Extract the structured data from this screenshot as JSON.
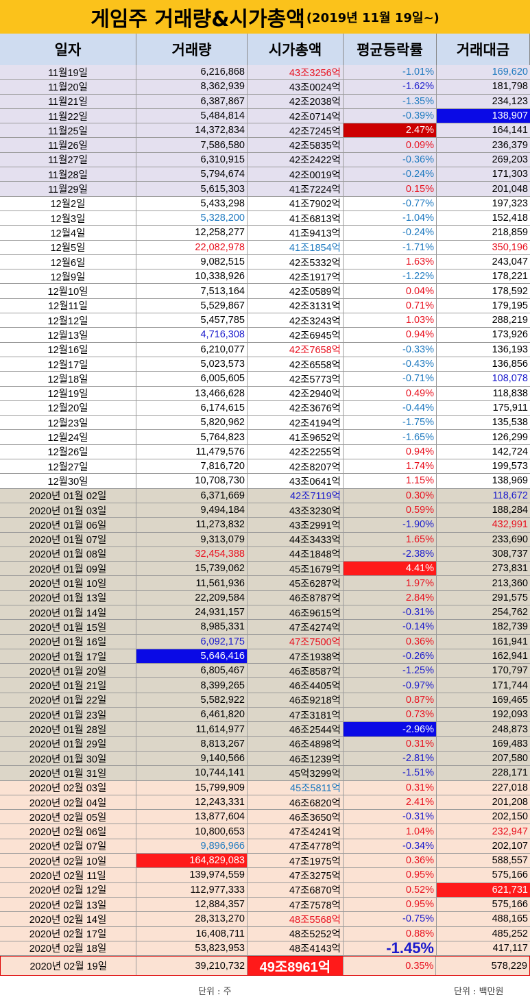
{
  "title": {
    "main": "게임주 거래량&시가총액",
    "sub": "(2019년 11월 19일~)"
  },
  "columns": [
    "일자",
    "거래량",
    "시가총액",
    "평균등락률",
    "거래대금"
  ],
  "colors": {
    "red": "#e8101e",
    "blue": "#1a1acc",
    "cyan": "#1f7ac0",
    "hl_red": "#cc0000",
    "hl_red2": "#ff1a1a",
    "hl_blue": "#0a0ae6"
  },
  "rows": [
    {
      "g": "g1",
      "d": "11월19일",
      "v": "6,216,868",
      "m": "43조3256억",
      "r": "-1.01%",
      "a": "169,620",
      "cm": "red",
      "cr": "cyan",
      "ca": "cyan"
    },
    {
      "g": "g1",
      "d": "11월20일",
      "v": "8,362,939",
      "m": "43조0024억",
      "r": "-1.62%",
      "a": "181,798",
      "cr": "blue"
    },
    {
      "g": "g1",
      "d": "11월21일",
      "v": "6,387,867",
      "m": "42조2038억",
      "r": "-1.35%",
      "a": "234,123",
      "cr": "cyan"
    },
    {
      "g": "g1",
      "d": "11월22일",
      "v": "5,484,814",
      "m": "42조0714억",
      "r": "-0.39%",
      "a": "138,907",
      "cr": "cyan",
      "ha": "hl_blue"
    },
    {
      "g": "g1",
      "d": "11월25일",
      "v": "14,372,834",
      "m": "42조7245억",
      "r": "2.47%",
      "a": "164,141",
      "hr": "hl_red"
    },
    {
      "g": "g1",
      "d": "11월26일",
      "v": "7,586,580",
      "m": "42조5835억",
      "r": "0.09%",
      "a": "236,379",
      "cr": "red"
    },
    {
      "g": "g1",
      "d": "11월27일",
      "v": "6,310,915",
      "m": "42조2422억",
      "r": "-0.36%",
      "a": "269,203",
      "cr": "cyan"
    },
    {
      "g": "g1",
      "d": "11월28일",
      "v": "5,794,674",
      "m": "42조0019억",
      "r": "-0.24%",
      "a": "171,303",
      "cr": "cyan"
    },
    {
      "g": "g1",
      "d": "11월29일",
      "v": "5,615,303",
      "m": "41조7224억",
      "r": "0.15%",
      "a": "201,048",
      "cr": "red"
    },
    {
      "g": "g2",
      "d": "12월2일",
      "v": "5,433,298",
      "m": "41조7902억",
      "r": "-0.77%",
      "a": "197,323",
      "cr": "cyan"
    },
    {
      "g": "g2",
      "d": "12월3일",
      "v": "5,328,200",
      "m": "41조6813억",
      "r": "-1.04%",
      "a": "152,418",
      "cv": "cyan",
      "cr": "cyan"
    },
    {
      "g": "g2",
      "d": "12월4일",
      "v": "12,258,277",
      "m": "41조9413억",
      "r": "-0.24%",
      "a": "218,859",
      "cr": "cyan"
    },
    {
      "g": "g2",
      "d": "12월5일",
      "v": "22,082,978",
      "m": "41조1854억",
      "r": "-1.71%",
      "a": "350,196",
      "cv": "red",
      "cm": "cyan",
      "cr": "cyan",
      "ca": "red"
    },
    {
      "g": "g2",
      "d": "12월6일",
      "v": "9,082,515",
      "m": "42조5332억",
      "r": "1.63%",
      "a": "243,047",
      "cr": "red"
    },
    {
      "g": "g2",
      "d": "12월9일",
      "v": "10,338,926",
      "m": "42조1917억",
      "r": "-1.22%",
      "a": "178,221",
      "cr": "cyan"
    },
    {
      "g": "g2",
      "d": "12월10일",
      "v": "7,513,164",
      "m": "42조0589억",
      "r": "0.04%",
      "a": "178,592",
      "cr": "red"
    },
    {
      "g": "g2",
      "d": "12월11일",
      "v": "5,529,867",
      "m": "42조3131억",
      "r": "0.71%",
      "a": "179,195",
      "cr": "red"
    },
    {
      "g": "g2",
      "d": "12월12일",
      "v": "5,457,785",
      "m": "42조3243억",
      "r": "1.03%",
      "a": "288,219",
      "cr": "red"
    },
    {
      "g": "g2",
      "d": "12월13일",
      "v": "4,716,308",
      "m": "42조6945억",
      "r": "0.94%",
      "a": "173,926",
      "cv": "blue",
      "cr": "red"
    },
    {
      "g": "g2",
      "d": "12월16일",
      "v": "6,210,077",
      "m": "42조7658억",
      "r": "-0.33%",
      "a": "136,193",
      "cm": "red",
      "cr": "cyan"
    },
    {
      "g": "g2",
      "d": "12월17일",
      "v": "5,023,573",
      "m": "42조6558억",
      "r": "-0.43%",
      "a": "136,856",
      "cr": "cyan"
    },
    {
      "g": "g2",
      "d": "12월18일",
      "v": "6,005,605",
      "m": "42조5773억",
      "r": "-0.71%",
      "a": "108,078",
      "cr": "cyan",
      "ca": "blue"
    },
    {
      "g": "g2",
      "d": "12월19일",
      "v": "13,466,628",
      "m": "42조2940억",
      "r": "0.49%",
      "a": "118,838",
      "cr": "red"
    },
    {
      "g": "g2",
      "d": "12월20일",
      "v": "6,174,615",
      "m": "42조3676억",
      "r": "-0.44%",
      "a": "175,911",
      "cr": "cyan"
    },
    {
      "g": "g2",
      "d": "12월23일",
      "v": "5,820,962",
      "m": "42조4194억",
      "r": "-1.75%",
      "a": "135,538",
      "cr": "cyan"
    },
    {
      "g": "g2",
      "d": "12월24일",
      "v": "5,764,823",
      "m": "41조9652억",
      "r": "-1.65%",
      "a": "126,299",
      "cr": "cyan"
    },
    {
      "g": "g2",
      "d": "12월26일",
      "v": "11,479,576",
      "m": "42조2255억",
      "r": "0.94%",
      "a": "142,724",
      "cr": "red"
    },
    {
      "g": "g2",
      "d": "12월27일",
      "v": "7,816,720",
      "m": "42조8207억",
      "r": "1.74%",
      "a": "199,573",
      "cr": "red"
    },
    {
      "g": "g2",
      "d": "12월30일",
      "v": "10,708,730",
      "m": "43조0641억",
      "r": "1.15%",
      "a": "138,969",
      "cr": "red"
    },
    {
      "g": "g3",
      "d": "2020년 01월 02일",
      "v": "6,371,669",
      "m": "42조7119억",
      "r": "0.30%",
      "a": "118,672",
      "cm": "blue",
      "cr": "red",
      "ca": "blue"
    },
    {
      "g": "g3",
      "d": "2020년 01월 03일",
      "v": "9,494,184",
      "m": "43조3230억",
      "r": "0.59%",
      "a": "188,284",
      "cr": "red"
    },
    {
      "g": "g3",
      "d": "2020년 01월 06일",
      "v": "11,273,832",
      "m": "43조2991억",
      "r": "-1.90%",
      "a": "432,991",
      "cr": "blue",
      "ca": "red"
    },
    {
      "g": "g3",
      "d": "2020년 01월 07일",
      "v": "9,313,079",
      "m": "44조3433억",
      "r": "1.65%",
      "a": "233,690",
      "cr": "red"
    },
    {
      "g": "g3",
      "d": "2020년 01월 08일",
      "v": "32,454,388",
      "m": "44조1848억",
      "r": "-2.38%",
      "a": "308,737",
      "cv": "red",
      "cr": "blue"
    },
    {
      "g": "g3",
      "d": "2020년 01월 09일",
      "v": "15,739,062",
      "m": "45조1679억",
      "r": "4.41%",
      "a": "273,831",
      "hr": "hl_red2"
    },
    {
      "g": "g3",
      "d": "2020년 01월 10일",
      "v": "11,561,936",
      "m": "45조6287억",
      "r": "1.97%",
      "a": "213,360",
      "cr": "red"
    },
    {
      "g": "g3",
      "d": "2020년 01월 13일",
      "v": "22,209,584",
      "m": "46조8787억",
      "r": "2.84%",
      "a": "291,575",
      "cr": "red"
    },
    {
      "g": "g3",
      "d": "2020년 01월 14일",
      "v": "24,931,157",
      "m": "46조9615억",
      "r": "-0.31%",
      "a": "254,762",
      "cr": "blue"
    },
    {
      "g": "g3",
      "d": "2020년 01월 15일",
      "v": "8,985,331",
      "m": "47조4274억",
      "r": "-0.14%",
      "a": "182,739",
      "cr": "blue"
    },
    {
      "g": "g3",
      "d": "2020년 01월 16일",
      "v": "6,092,175",
      "m": "47조7500억",
      "r": "0.36%",
      "a": "161,941",
      "cv": "blue",
      "cm": "red",
      "cr": "red"
    },
    {
      "g": "g3",
      "d": "2020년 01월 17일",
      "v": "5,646,416",
      "m": "47조1938억",
      "r": "-0.26%",
      "a": "162,941",
      "hv": "hl_blue",
      "cr": "blue"
    },
    {
      "g": "g3",
      "d": "2020년 01월 20일",
      "v": "6,805,467",
      "m": "46조8587억",
      "r": "-1.25%",
      "a": "170,797",
      "cr": "blue"
    },
    {
      "g": "g3",
      "d": "2020년 01월 21일",
      "v": "8,399,265",
      "m": "46조4405억",
      "r": "-0.97%",
      "a": "171,744",
      "cr": "blue"
    },
    {
      "g": "g3",
      "d": "2020년 01월 22일",
      "v": "5,582,922",
      "m": "46조9218억",
      "r": "0.87%",
      "a": "169,465",
      "cr": "red"
    },
    {
      "g": "g3",
      "d": "2020년 01월 23일",
      "v": "6,461,820",
      "m": "47조3181억",
      "r": "0.73%",
      "a": "192,093",
      "cr": "red"
    },
    {
      "g": "g3",
      "d": "2020년 01월 28일",
      "v": "11,614,977",
      "m": "46조2544억",
      "r": "-2.96%",
      "a": "248,873",
      "hr": "hl_blue"
    },
    {
      "g": "g3",
      "d": "2020년 01월 29일",
      "v": "8,813,267",
      "m": "46조4898억",
      "r": "0.31%",
      "a": "169,483",
      "cr": "red"
    },
    {
      "g": "g3",
      "d": "2020년 01월 30일",
      "v": "9,140,566",
      "m": "46조1239억",
      "r": "-2.81%",
      "a": "207,580",
      "cr": "blue"
    },
    {
      "g": "g3",
      "d": "2020년 01월 31일",
      "v": "10,744,141",
      "m": "45억3299억",
      "r": "-1.51%",
      "a": "228,171",
      "cr": "blue"
    },
    {
      "g": "g4",
      "d": "2020년 02월 03일",
      "v": "15,799,909",
      "m": "45조5811억",
      "r": "0.31%",
      "a": "227,018",
      "cm": "cyan",
      "cr": "red"
    },
    {
      "g": "g4",
      "d": "2020년 02월 04일",
      "v": "12,243,331",
      "m": "46조6820억",
      "r": "2.41%",
      "a": "201,208",
      "cr": "red"
    },
    {
      "g": "g4",
      "d": "2020년 02월 05일",
      "v": "13,877,604",
      "m": "46조3650억",
      "r": "-0.31%",
      "a": "202,150",
      "cr": "blue"
    },
    {
      "g": "g4",
      "d": "2020년 02월 06일",
      "v": "10,800,653",
      "m": "47조4241억",
      "r": "1.04%",
      "a": "232,947",
      "cr": "red",
      "ca": "red"
    },
    {
      "g": "g4",
      "d": "2020년 02월 07일",
      "v": "9,896,966",
      "m": "47조4778억",
      "r": "-0.34%",
      "a": "202,107",
      "cv": "cyan",
      "cr": "blue"
    },
    {
      "g": "g4",
      "d": "2020년 02월 10일",
      "v": "164,829,083",
      "m": "47조1975억",
      "r": "0.36%",
      "a": "588,557",
      "hv": "hl_red2",
      "cr": "red"
    },
    {
      "g": "g4",
      "d": "2020년 02월 11일",
      "v": "139,974,559",
      "m": "47조3275억",
      "r": "0.95%",
      "a": "575,166",
      "cr": "red"
    },
    {
      "g": "g4",
      "d": "2020년 02월 12일",
      "v": "112,977,333",
      "m": "47조6870억",
      "r": "0.52%",
      "a": "621,731",
      "cr": "red",
      "ha": "hl_red2"
    },
    {
      "g": "g4",
      "d": "2020년 02월 13일",
      "v": "12,884,357",
      "m": "47조7578억",
      "r": "0.95%",
      "a": "575,166",
      "cr": "red"
    },
    {
      "g": "g4",
      "d": "2020년 02월 14일",
      "v": "28,313,270",
      "m": "48조5568억",
      "r": "-0.75%",
      "a": "488,165",
      "cm": "red",
      "cr": "blue"
    },
    {
      "g": "g4",
      "d": "2020년 02월 17일",
      "v": "16,408,711",
      "m": "48조5252억",
      "r": "0.88%",
      "a": "485,252",
      "cr": "red"
    },
    {
      "g": "g4",
      "d": "2020년 02월 18일",
      "v": "53,823,953",
      "m": "48조4143억",
      "r": "-1.45%",
      "a": "417,117",
      "cr": "blue",
      "big_r": true
    },
    {
      "g": "g4",
      "d": "2020년 02월 19일",
      "v": "39,210,732",
      "m": "49조8961억",
      "r": "0.35%",
      "a": "578,229",
      "hm": "hl_red2",
      "cr": "red",
      "last": true
    }
  ],
  "footer": {
    "left": "단위 : 주",
    "right": "단위 : 백만원"
  }
}
